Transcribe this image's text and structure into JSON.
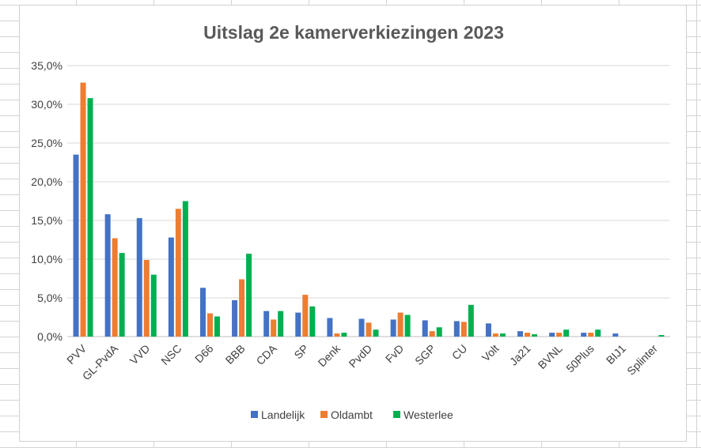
{
  "chart_data": {
    "type": "bar",
    "title": "Uitslag 2e kamerverkiezingen 2023",
    "xlabel": "",
    "ylabel": "",
    "ylim": [
      0,
      35
    ],
    "y_ticks": [
      "0,0%",
      "5,0%",
      "10,0%",
      "15,0%",
      "20,0%",
      "25,0%",
      "30,0%",
      "35,0%"
    ],
    "grid": true,
    "legend_position": "bottom",
    "categories": [
      "PVV",
      "GL-PvdA",
      "VVD",
      "NSC",
      "D66",
      "BBB",
      "CDA",
      "SP",
      "Denk",
      "PvdD",
      "FvD",
      "SGP",
      "CU",
      "Volt",
      "Ja21",
      "BVNL",
      "50Plus",
      "BIJ1",
      "Splinter"
    ],
    "series": [
      {
        "name": "Landelijk",
        "color": "#4472C4",
        "values": [
          23.5,
          15.8,
          15.3,
          12.8,
          6.3,
          4.7,
          3.3,
          3.1,
          2.4,
          2.3,
          2.2,
          2.1,
          2.0,
          1.7,
          0.7,
          0.5,
          0.5,
          0.4,
          0.0
        ]
      },
      {
        "name": "Oldambt",
        "color": "#ED7D31",
        "values": [
          32.8,
          12.7,
          9.9,
          16.5,
          3.0,
          7.4,
          2.2,
          5.4,
          0.4,
          1.8,
          3.1,
          0.7,
          1.9,
          0.4,
          0.5,
          0.5,
          0.5,
          0.0,
          0.0
        ]
      },
      {
        "name": "Westerlee",
        "color": "#00B050",
        "values": [
          30.8,
          10.8,
          8.0,
          17.5,
          2.6,
          10.7,
          3.3,
          3.9,
          0.5,
          0.9,
          2.8,
          1.2,
          4.1,
          0.4,
          0.3,
          0.9,
          0.9,
          0.0,
          0.2
        ]
      }
    ]
  }
}
